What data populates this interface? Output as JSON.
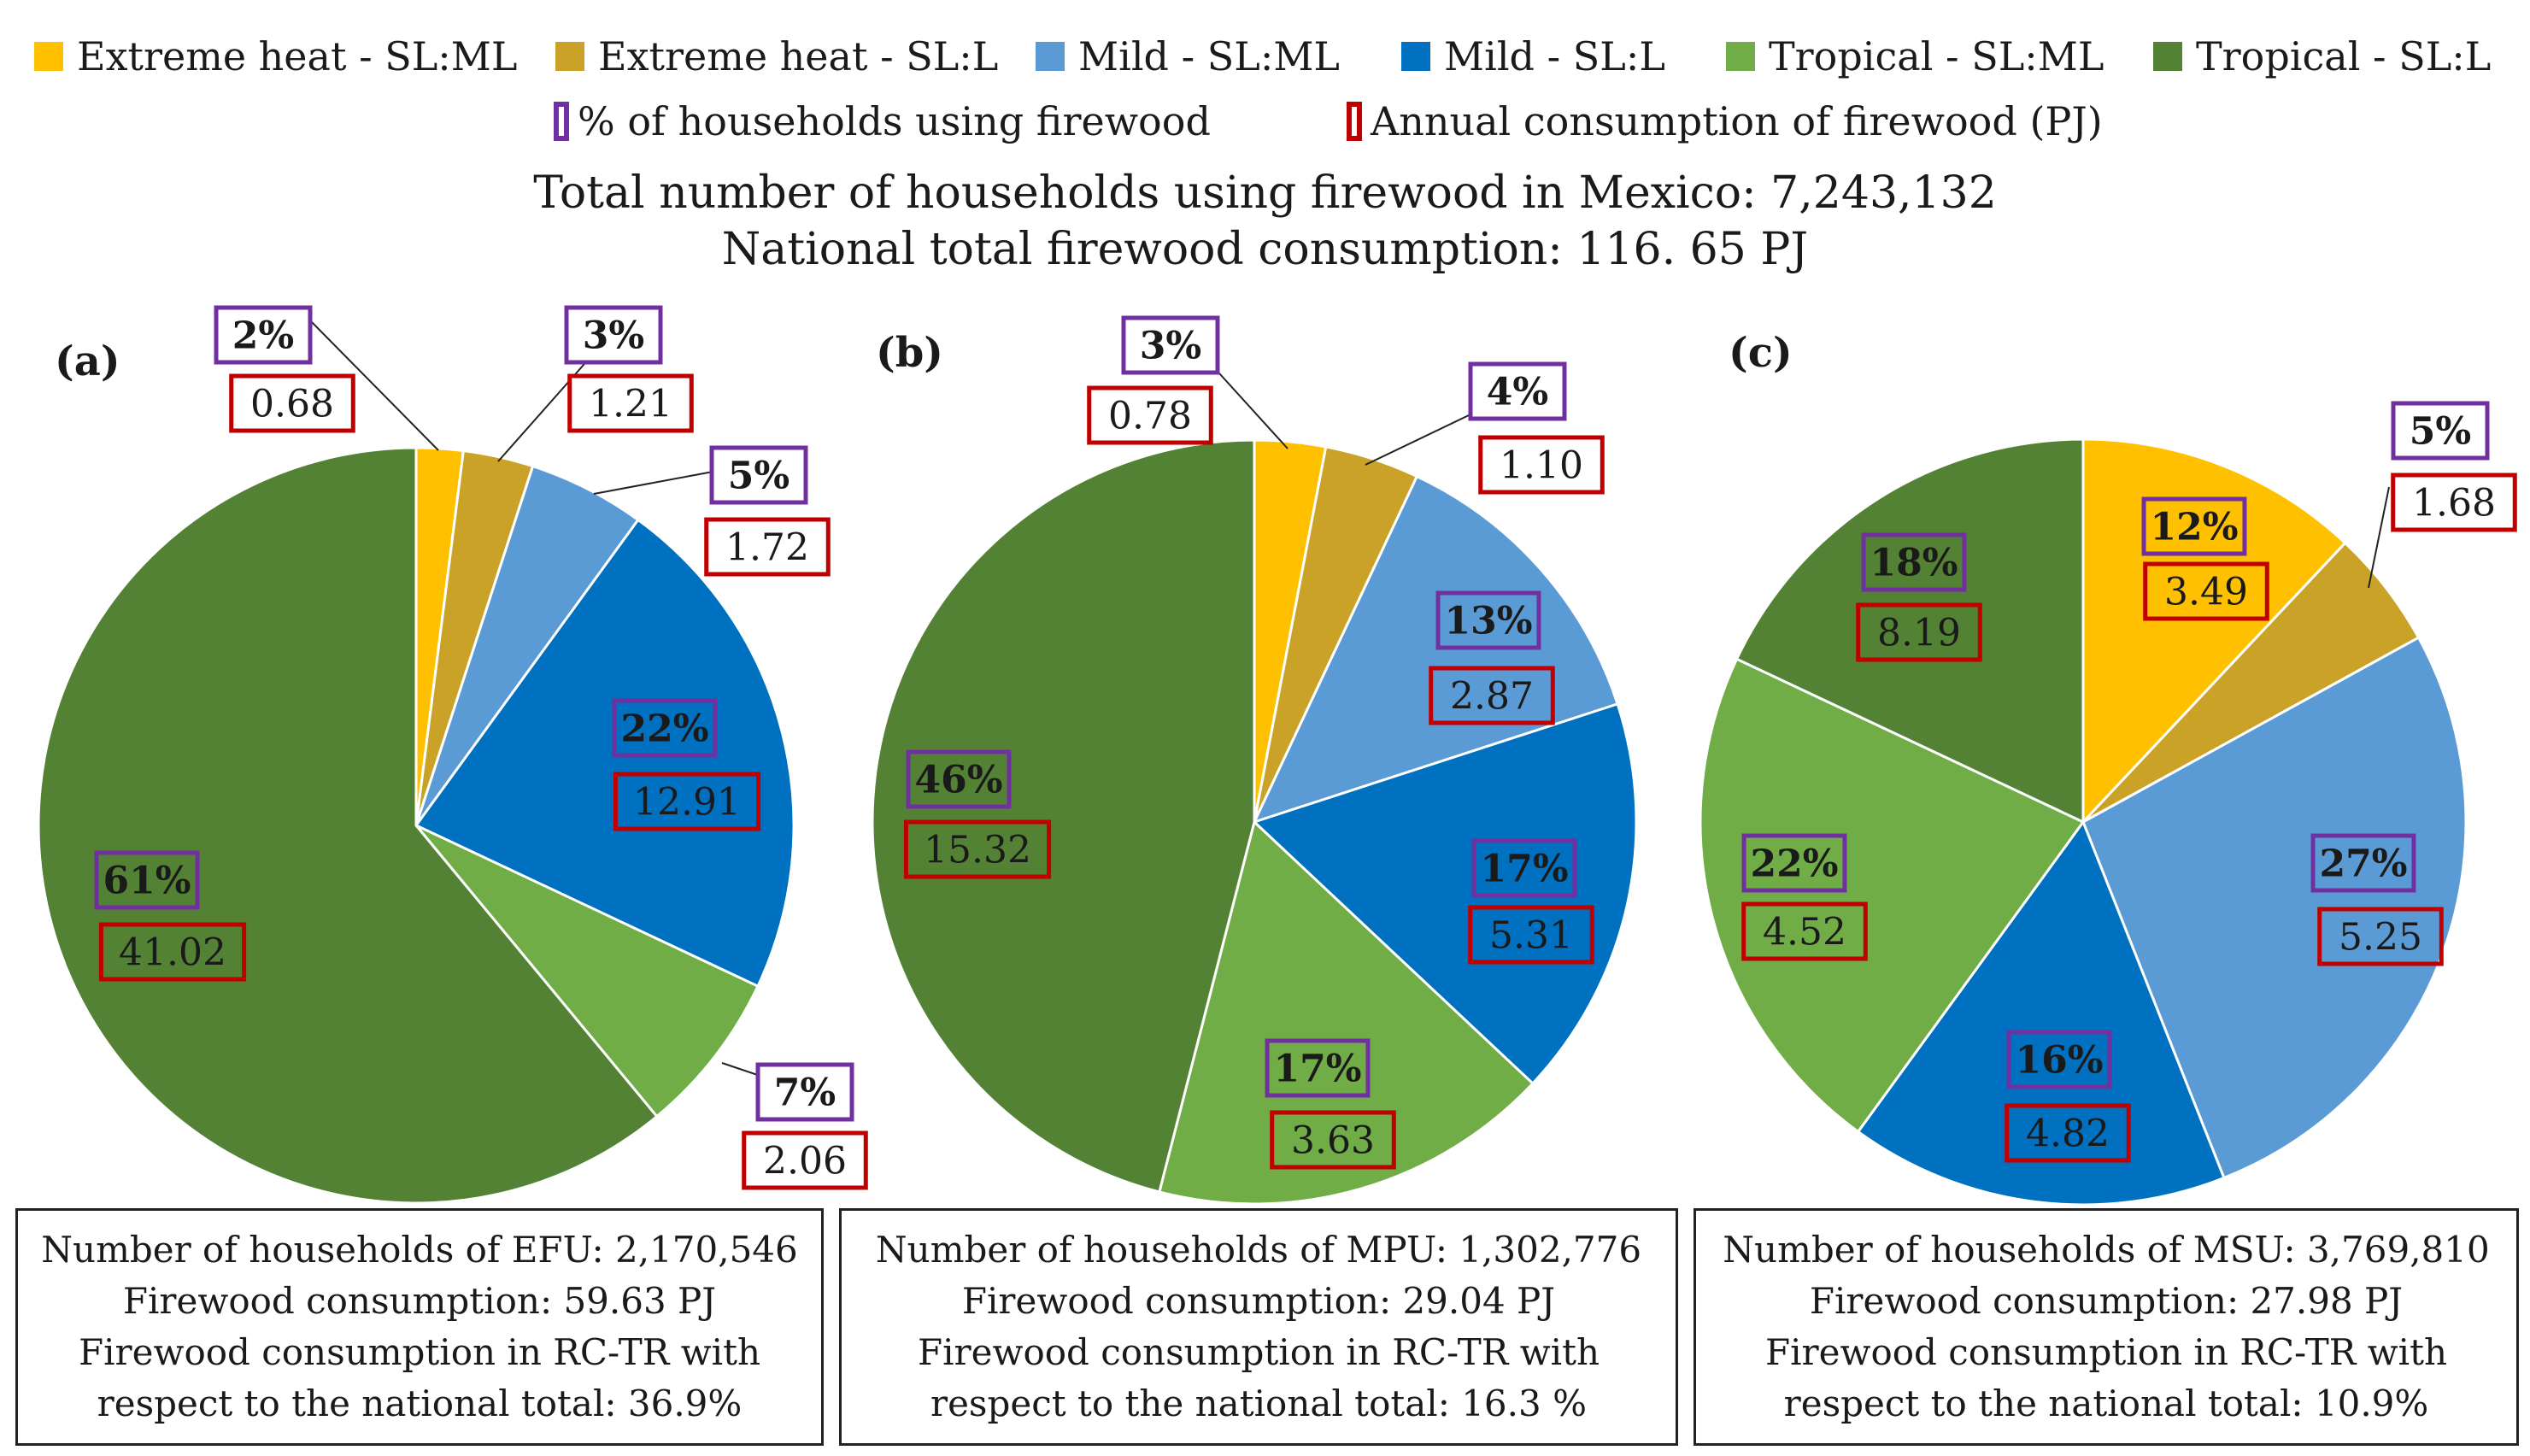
{
  "legend": {
    "items": [
      {
        "label": "Extreme heat - SL:ML",
        "color": "#FFC000"
      },
      {
        "label": "Extreme heat - SL:L",
        "color": "#C9A227"
      },
      {
        "label": "Mild - SL:ML",
        "color": "#5B9BD5"
      },
      {
        "label": "Mild - SL:L",
        "color": "#0070C0"
      },
      {
        "label": "Tropical - SL:ML",
        "color": "#70AD47"
      },
      {
        "label": "Tropical - SL:L",
        "color": "#548235"
      }
    ],
    "pct_label": "% of households using firewood",
    "pct_color": "#7030A0",
    "consumption_label": "Annual consumption of firewood (PJ)",
    "consumption_color": "#C00000"
  },
  "totals": {
    "households": "Total number of households using firewood in Mexico: 7,243,132",
    "consumption": "National total firewood consumption: 116. 65 PJ"
  },
  "chart_data": [
    {
      "type": "pie",
      "panel": "(a)",
      "categories": [
        "Extreme heat - SL:ML",
        "Extreme heat - SL:L",
        "Mild - SL:ML",
        "Mild - SL:L",
        "Tropical - SL:ML",
        "Tropical - SL:L"
      ],
      "values": [
        2,
        3,
        5,
        22,
        7,
        61
      ],
      "pct_labels": [
        "2%",
        "3%",
        "5%",
        "22%",
        "7%",
        "61%"
      ],
      "consumption_labels": [
        "0.68",
        "1.21",
        "1.72",
        "12.91",
        "2.06",
        "41.02"
      ],
      "info": [
        "Number of households of EFU: 2,170,546",
        "Firewood consumption: 59.63 PJ",
        "Firewood consumption in RC-TR with",
        "respect to the national total: 36.9%"
      ]
    },
    {
      "type": "pie",
      "panel": "(b)",
      "categories": [
        "Extreme heat - SL:ML",
        "Extreme heat - SL:L",
        "Mild - SL:ML",
        "Mild - SL:L",
        "Tropical - SL:ML",
        "Tropical - SL:L"
      ],
      "values": [
        3,
        4,
        13,
        17,
        17,
        46
      ],
      "pct_labels": [
        "3%",
        "4%",
        "13%",
        "17%",
        "17%",
        "46%"
      ],
      "consumption_labels": [
        "0.78",
        "1.10",
        "2.87",
        "5.31",
        "3.63",
        "15.32"
      ],
      "info": [
        "Number of households of MPU: 1,302,776",
        "Firewood consumption: 29.04 PJ",
        "Firewood consumption in RC-TR with",
        "respect to the national total: 16.3 %"
      ]
    },
    {
      "type": "pie",
      "panel": "(c)",
      "categories": [
        "Extreme heat - SL:ML",
        "Extreme heat - SL:L",
        "Mild - SL:ML",
        "Mild - SL:L",
        "Tropical - SL:ML",
        "Tropical - SL:L"
      ],
      "values": [
        12,
        5,
        27,
        16,
        22,
        18
      ],
      "pct_labels": [
        "12%",
        "5%",
        "27%",
        "16%",
        "22%",
        "18%"
      ],
      "consumption_labels": [
        "3.49",
        "1.68",
        "5.25",
        "4.82",
        "4.52",
        "8.19"
      ],
      "info": [
        "Number of households of MSU: 3,769,810",
        "Firewood consumption: 27.98 PJ",
        "Firewood consumption in RC-TR with",
        "respect to the national total: 10.9%"
      ]
    }
  ]
}
